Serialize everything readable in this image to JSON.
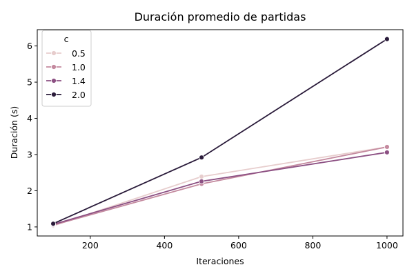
{
  "chart_data": {
    "type": "line",
    "title": "Duración promedio de partidas",
    "xlabel": "Iteraciones",
    "ylabel": "Duración (s)",
    "xlim": [
      57,
      1043
    ],
    "ylim": [
      0.75,
      6.45
    ],
    "x_ticks": [
      200,
      400,
      600,
      800,
      1000
    ],
    "y_ticks": [
      1,
      2,
      3,
      4,
      5,
      6
    ],
    "grid": false,
    "legend": {
      "title": "c",
      "placement": "top-left"
    },
    "x": [
      100,
      500,
      1000
    ],
    "series": [
      {
        "name": "0.5",
        "color": "#e7cdcd",
        "values": [
          1.03,
          2.39,
          3.21
        ]
      },
      {
        "name": "1.0",
        "color": "#c48a9f",
        "values": [
          1.05,
          2.19,
          3.21
        ]
      },
      {
        "name": "1.4",
        "color": "#8c5083",
        "values": [
          1.07,
          2.26,
          3.06
        ]
      },
      {
        "name": "2.0",
        "color": "#2a1b3a",
        "values": [
          1.09,
          2.92,
          6.19
        ]
      }
    ]
  }
}
